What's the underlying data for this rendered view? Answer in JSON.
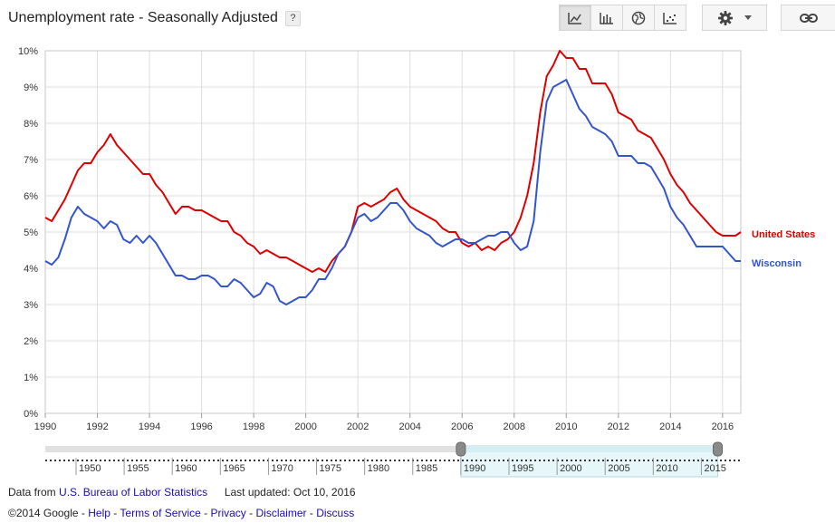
{
  "header": {
    "title": "Unemployment rate - Seasonally Adjusted",
    "help_label": "?"
  },
  "toolbar": {
    "chart_types": [
      {
        "name": "line-chart",
        "icon": "line-chart-icon",
        "active": true
      },
      {
        "name": "bar-chart",
        "icon": "bar-chart-icon",
        "active": false
      },
      {
        "name": "map",
        "icon": "globe-icon",
        "active": false
      },
      {
        "name": "scatter-chart",
        "icon": "scatter-icon",
        "active": false
      }
    ],
    "settings_icon": "gear-icon",
    "dropdown_icon": "caret-down-icon",
    "link_icon": "link-icon"
  },
  "footer": {
    "data_from": "Data from",
    "source_link": "U.S. Bureau of Labor Statistics",
    "last_updated": "Last updated: Oct 10, 2016",
    "copyright": "©2014 Google",
    "links": [
      "Help",
      "Terms of Service",
      "Privacy",
      "Disclaimer",
      "Discuss"
    ]
  },
  "colors": {
    "us": "#dd0000",
    "wi": "#3355cc",
    "grid": "#dddddd",
    "timeline_selected": "#e6f6f9"
  },
  "chart_data": {
    "type": "line",
    "title": "Unemployment rate - Seasonally Adjusted",
    "x_range": [
      1990,
      2016.7
    ],
    "ylim": [
      0,
      10
    ],
    "y_ticks": [
      "0%",
      "1%",
      "2%",
      "3%",
      "4%",
      "5%",
      "6%",
      "7%",
      "8%",
      "9%",
      "10%"
    ],
    "x_ticks": [
      "1990",
      "1992",
      "1994",
      "1996",
      "1998",
      "2000",
      "2002",
      "2004",
      "2006",
      "2008",
      "2010",
      "2012",
      "2014",
      "2016"
    ],
    "legend_position": "right",
    "grid": true,
    "series": [
      {
        "name": "United States",
        "color": "#dd0000",
        "x": [
          1990.0,
          1990.25,
          1990.5,
          1990.75,
          1991.0,
          1991.25,
          1991.5,
          1991.75,
          1992.0,
          1992.25,
          1992.5,
          1992.75,
          1993.0,
          1993.25,
          1993.5,
          1993.75,
          1994.0,
          1994.25,
          1994.5,
          1994.75,
          1995.0,
          1995.25,
          1995.5,
          1995.75,
          1996.0,
          1996.25,
          1996.5,
          1996.75,
          1997.0,
          1997.25,
          1997.5,
          1997.75,
          1998.0,
          1998.25,
          1998.5,
          1998.75,
          1999.0,
          1999.25,
          1999.5,
          1999.75,
          2000.0,
          2000.25,
          2000.5,
          2000.75,
          2001.0,
          2001.25,
          2001.5,
          2001.75,
          2002.0,
          2002.25,
          2002.5,
          2002.75,
          2003.0,
          2003.25,
          2003.5,
          2003.75,
          2004.0,
          2004.25,
          2004.5,
          2004.75,
          2005.0,
          2005.25,
          2005.5,
          2005.75,
          2006.0,
          2006.25,
          2006.5,
          2006.75,
          2007.0,
          2007.25,
          2007.5,
          2007.75,
          2008.0,
          2008.25,
          2008.5,
          2008.75,
          2009.0,
          2009.25,
          2009.5,
          2009.75,
          2010.0,
          2010.25,
          2010.5,
          2010.75,
          2011.0,
          2011.25,
          2011.5,
          2011.75,
          2012.0,
          2012.25,
          2012.5,
          2012.75,
          2013.0,
          2013.25,
          2013.5,
          2013.75,
          2014.0,
          2014.25,
          2014.5,
          2014.75,
          2015.0,
          2015.25,
          2015.5,
          2015.75,
          2016.0,
          2016.25,
          2016.5,
          2016.7
        ],
        "values": [
          5.4,
          5.3,
          5.6,
          5.9,
          6.3,
          6.7,
          6.9,
          6.9,
          7.2,
          7.4,
          7.7,
          7.4,
          7.2,
          7.0,
          6.8,
          6.6,
          6.6,
          6.3,
          6.1,
          5.8,
          5.5,
          5.7,
          5.7,
          5.6,
          5.6,
          5.5,
          5.4,
          5.3,
          5.3,
          5.0,
          4.9,
          4.7,
          4.6,
          4.4,
          4.5,
          4.4,
          4.3,
          4.3,
          4.2,
          4.1,
          4.0,
          3.9,
          4.0,
          3.9,
          4.2,
          4.4,
          4.6,
          5.0,
          5.7,
          5.8,
          5.7,
          5.8,
          5.9,
          6.1,
          6.2,
          5.9,
          5.7,
          5.6,
          5.5,
          5.4,
          5.3,
          5.1,
          5.0,
          5.0,
          4.7,
          4.6,
          4.7,
          4.5,
          4.6,
          4.5,
          4.7,
          4.8,
          5.0,
          5.4,
          6.0,
          6.9,
          8.3,
          9.3,
          9.6,
          10.0,
          9.8,
          9.8,
          9.5,
          9.5,
          9.1,
          9.1,
          9.1,
          8.8,
          8.3,
          8.2,
          8.1,
          7.8,
          7.7,
          7.6,
          7.3,
          7.0,
          6.6,
          6.3,
          6.1,
          5.8,
          5.6,
          5.4,
          5.2,
          5.0,
          4.9,
          4.9,
          4.9,
          5.0
        ]
      },
      {
        "name": "Wisconsin",
        "color": "#3355cc",
        "x": [
          1990.0,
          1990.25,
          1990.5,
          1990.75,
          1991.0,
          1991.25,
          1991.5,
          1991.75,
          1992.0,
          1992.25,
          1992.5,
          1992.75,
          1993.0,
          1993.25,
          1993.5,
          1993.75,
          1994.0,
          1994.25,
          1994.5,
          1994.75,
          1995.0,
          1995.25,
          1995.5,
          1995.75,
          1996.0,
          1996.25,
          1996.5,
          1996.75,
          1997.0,
          1997.25,
          1997.5,
          1997.75,
          1998.0,
          1998.25,
          1998.5,
          1998.75,
          1999.0,
          1999.25,
          1999.5,
          1999.75,
          2000.0,
          2000.25,
          2000.5,
          2000.75,
          2001.0,
          2001.25,
          2001.5,
          2001.75,
          2002.0,
          2002.25,
          2002.5,
          2002.75,
          2003.0,
          2003.25,
          2003.5,
          2003.75,
          2004.0,
          2004.25,
          2004.5,
          2004.75,
          2005.0,
          2005.25,
          2005.5,
          2005.75,
          2006.0,
          2006.25,
          2006.5,
          2006.75,
          2007.0,
          2007.25,
          2007.5,
          2007.75,
          2008.0,
          2008.25,
          2008.5,
          2008.75,
          2009.0,
          2009.25,
          2009.5,
          2009.75,
          2010.0,
          2010.25,
          2010.5,
          2010.75,
          2011.0,
          2011.25,
          2011.5,
          2011.75,
          2012.0,
          2012.25,
          2012.5,
          2012.75,
          2013.0,
          2013.25,
          2013.5,
          2013.75,
          2014.0,
          2014.25,
          2014.5,
          2014.75,
          2015.0,
          2015.25,
          2015.5,
          2015.75,
          2016.0,
          2016.25,
          2016.5,
          2016.7
        ],
        "values": [
          4.2,
          4.1,
          4.3,
          4.8,
          5.4,
          5.7,
          5.5,
          5.4,
          5.3,
          5.1,
          5.3,
          5.2,
          4.8,
          4.7,
          4.9,
          4.7,
          4.9,
          4.7,
          4.4,
          4.1,
          3.8,
          3.8,
          3.7,
          3.7,
          3.8,
          3.8,
          3.7,
          3.5,
          3.5,
          3.7,
          3.6,
          3.4,
          3.2,
          3.3,
          3.6,
          3.5,
          3.1,
          3.0,
          3.1,
          3.2,
          3.2,
          3.4,
          3.7,
          3.7,
          4.0,
          4.4,
          4.6,
          5.0,
          5.4,
          5.5,
          5.3,
          5.4,
          5.6,
          5.8,
          5.8,
          5.6,
          5.3,
          5.1,
          5.0,
          4.9,
          4.7,
          4.6,
          4.7,
          4.8,
          4.8,
          4.7,
          4.7,
          4.8,
          4.9,
          4.9,
          5.0,
          5.0,
          4.7,
          4.5,
          4.6,
          5.3,
          7.2,
          8.6,
          9.0,
          9.1,
          9.2,
          8.8,
          8.4,
          8.2,
          7.9,
          7.8,
          7.7,
          7.5,
          7.1,
          7.1,
          7.1,
          6.9,
          6.9,
          6.8,
          6.5,
          6.2,
          5.7,
          5.4,
          5.2,
          4.9,
          4.6,
          4.6,
          4.6,
          4.6,
          4.6,
          4.4,
          4.2,
          4.2
        ]
      }
    ],
    "timeline": {
      "labels": [
        "1950",
        "1955",
        "1960",
        "1965",
        "1970",
        "1975",
        "1980",
        "1985",
        "1990",
        "1995",
        "2000",
        "2005",
        "2010",
        "2015"
      ],
      "full_range": [
        1946.8,
        2019.1
      ],
      "selected_range": [
        1990,
        2016.7
      ]
    }
  }
}
